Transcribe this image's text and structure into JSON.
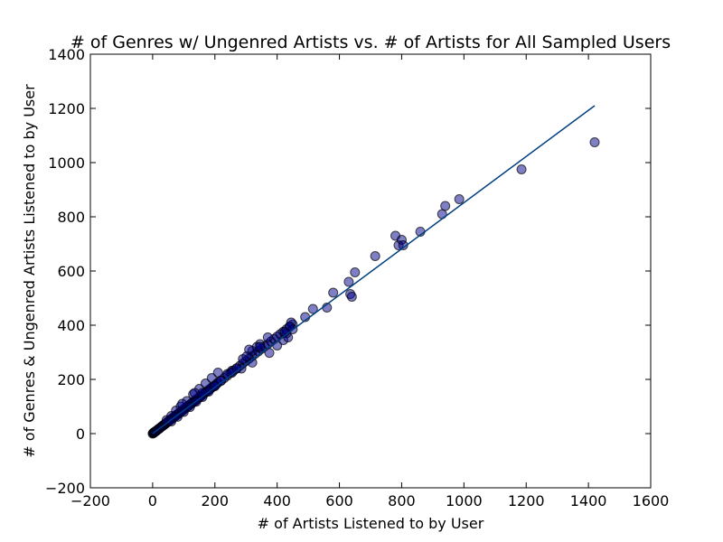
{
  "chart_data": {
    "type": "scatter",
    "title": "# of Genres w/ Ungenred Artists vs. # of Artists for All Sampled Users",
    "xlabel": "# of Artists Listened to by User",
    "ylabel": "# of Genres & Ungenred Artists Listened to by User",
    "xlim": [
      -200,
      1600
    ],
    "ylim": [
      -200,
      1400
    ],
    "xticks": [
      -200,
      0,
      200,
      400,
      600,
      800,
      1000,
      1200,
      1400,
      1600
    ],
    "yticks": [
      -200,
      0,
      200,
      400,
      600,
      800,
      1000,
      1200,
      1400
    ],
    "grid": false,
    "colors": {
      "point_fill": "#00008b",
      "point_edge": "#000000",
      "fit_line": "#003f80"
    },
    "points": [
      [
        0,
        0
      ],
      [
        2,
        2
      ],
      [
        3,
        3
      ],
      [
        4,
        3
      ],
      [
        5,
        5
      ],
      [
        6,
        5
      ],
      [
        8,
        7
      ],
      [
        10,
        9
      ],
      [
        12,
        10
      ],
      [
        15,
        13
      ],
      [
        18,
        16
      ],
      [
        20,
        18
      ],
      [
        22,
        19
      ],
      [
        25,
        22
      ],
      [
        28,
        25
      ],
      [
        30,
        27
      ],
      [
        33,
        29
      ],
      [
        35,
        31
      ],
      [
        38,
        34
      ],
      [
        40,
        35
      ],
      [
        43,
        38
      ],
      [
        45,
        40
      ],
      [
        48,
        43
      ],
      [
        50,
        45
      ],
      [
        53,
        47
      ],
      [
        55,
        49
      ],
      [
        58,
        52
      ],
      [
        60,
        53
      ],
      [
        63,
        56
      ],
      [
        65,
        58
      ],
      [
        68,
        61
      ],
      [
        70,
        62
      ],
      [
        73,
        65
      ],
      [
        75,
        67
      ],
      [
        78,
        70
      ],
      [
        80,
        71
      ],
      [
        83,
        74
      ],
      [
        85,
        76
      ],
      [
        88,
        78
      ],
      [
        90,
        80
      ],
      [
        93,
        83
      ],
      [
        95,
        85
      ],
      [
        98,
        87
      ],
      [
        100,
        89
      ],
      [
        103,
        92
      ],
      [
        105,
        94
      ],
      [
        108,
        96
      ],
      [
        110,
        98
      ],
      [
        113,
        101
      ],
      [
        115,
        102
      ],
      [
        118,
        105
      ],
      [
        120,
        107
      ],
      [
        123,
        110
      ],
      [
        125,
        111
      ],
      [
        128,
        114
      ],
      [
        130,
        116
      ],
      [
        133,
        118
      ],
      [
        135,
        120
      ],
      [
        138,
        123
      ],
      [
        140,
        125
      ],
      [
        143,
        128
      ],
      [
        145,
        129
      ],
      [
        148,
        132
      ],
      [
        150,
        134
      ],
      [
        155,
        138
      ],
      [
        160,
        143
      ],
      [
        165,
        147
      ],
      [
        170,
        152
      ],
      [
        175,
        156
      ],
      [
        180,
        161
      ],
      [
        185,
        165
      ],
      [
        190,
        170
      ],
      [
        195,
        174
      ],
      [
        200,
        178
      ],
      [
        205,
        183
      ],
      [
        210,
        188
      ],
      [
        220,
        196
      ],
      [
        230,
        205
      ],
      [
        240,
        214
      ],
      [
        250,
        224
      ],
      [
        260,
        232
      ],
      [
        270,
        241
      ],
      [
        280,
        250
      ],
      [
        290,
        259
      ],
      [
        300,
        268
      ],
      [
        310,
        277
      ],
      [
        320,
        286
      ],
      [
        330,
        295
      ],
      [
        340,
        304
      ],
      [
        350,
        313
      ],
      [
        360,
        322
      ],
      [
        370,
        330
      ],
      [
        380,
        340
      ],
      [
        390,
        349
      ],
      [
        400,
        358
      ],
      [
        410,
        367
      ],
      [
        420,
        376
      ],
      [
        430,
        385
      ],
      [
        440,
        394
      ],
      [
        450,
        403
      ],
      [
        45,
        50
      ],
      [
        60,
        65
      ],
      [
        75,
        85
      ],
      [
        90,
        100
      ],
      [
        110,
        120
      ],
      [
        130,
        145
      ],
      [
        150,
        165
      ],
      [
        170,
        185
      ],
      [
        190,
        205
      ],
      [
        210,
        225
      ],
      [
        60,
        45
      ],
      [
        80,
        62
      ],
      [
        100,
        80
      ],
      [
        120,
        98
      ],
      [
        140,
        118
      ],
      [
        160,
        135
      ],
      [
        180,
        155
      ],
      [
        200,
        175
      ],
      [
        220,
        195
      ],
      [
        240,
        220
      ],
      [
        255,
        232
      ],
      [
        290,
        275
      ],
      [
        320,
        305
      ],
      [
        345,
        330
      ],
      [
        370,
        355
      ],
      [
        255,
        225
      ],
      [
        285,
        240
      ],
      [
        320,
        262
      ],
      [
        375,
        298
      ],
      [
        310,
        310
      ],
      [
        335,
        320
      ],
      [
        400,
        325
      ],
      [
        420,
        345
      ],
      [
        430,
        370
      ],
      [
        435,
        355
      ],
      [
        445,
        410
      ],
      [
        450,
        385
      ],
      [
        490,
        430
      ],
      [
        515,
        460
      ],
      [
        560,
        465
      ],
      [
        580,
        520
      ],
      [
        630,
        560
      ],
      [
        635,
        515
      ],
      [
        640,
        505
      ],
      [
        650,
        595
      ],
      [
        715,
        655
      ],
      [
        780,
        730
      ],
      [
        790,
        695
      ],
      [
        800,
        715
      ],
      [
        805,
        695
      ],
      [
        860,
        745
      ],
      [
        930,
        810
      ],
      [
        940,
        840
      ],
      [
        985,
        865
      ],
      [
        1185,
        975
      ],
      [
        1420,
        1075
      ],
      [
        440,
        395
      ],
      [
        425,
        375
      ],
      [
        345,
        320
      ],
      [
        302,
        285
      ],
      [
        270,
        240
      ],
      [
        160,
        150
      ],
      [
        135,
        150
      ],
      [
        95,
        110
      ]
    ],
    "fit_line": {
      "x": [
        0,
        1420
      ],
      "y": [
        0,
        1210
      ]
    }
  }
}
